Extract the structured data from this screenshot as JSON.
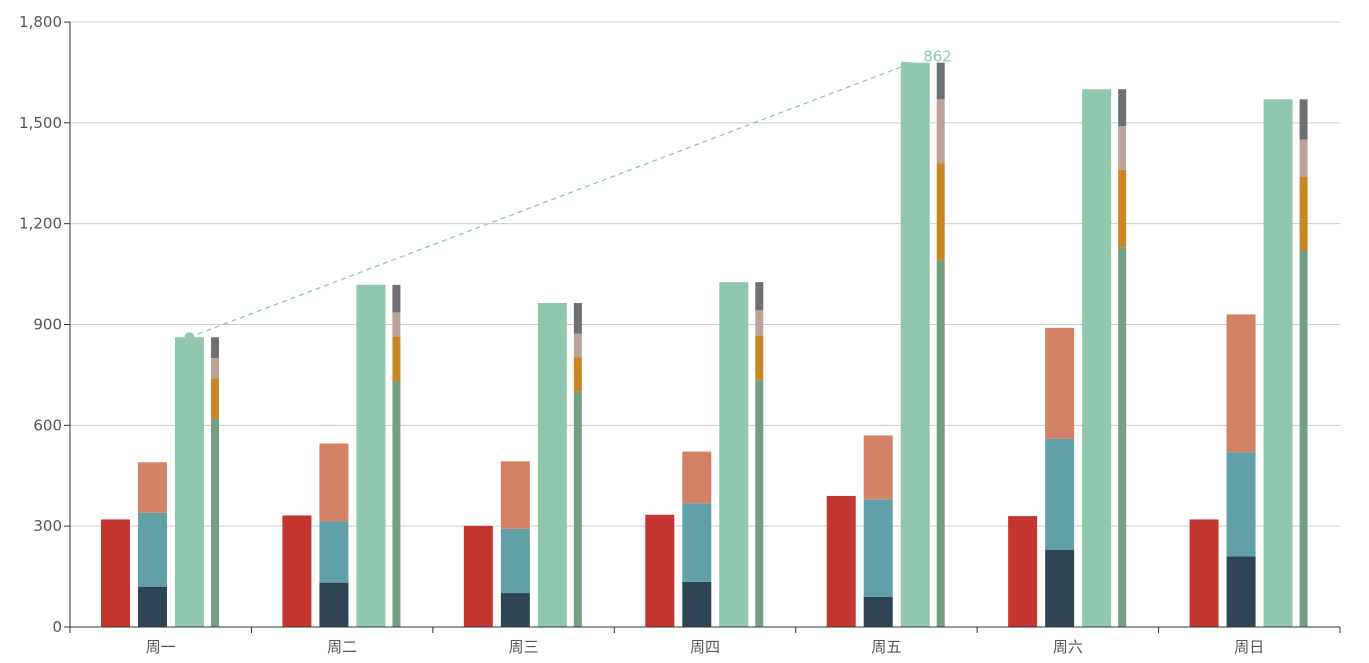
{
  "chart_data": {
    "type": "bar",
    "categories": [
      "周一",
      "周二",
      "周三",
      "周四",
      "周五",
      "周六",
      "周日"
    ],
    "ylim": [
      0,
      1800
    ],
    "yticks": [
      0,
      300,
      600,
      900,
      1200,
      1500,
      1800
    ],
    "ytick_labels": [
      "0",
      "300",
      "600",
      "900",
      "1,200",
      "1,500",
      "1,800"
    ],
    "grid": true,
    "legend": "none",
    "bar_groups": [
      {
        "segments": [
          {
            "color": "#c23531",
            "values": [
              320,
              332,
              301,
              334,
              390,
              330,
              320
            ]
          }
        ]
      },
      {
        "segments": [
          {
            "color": "#2f4554",
            "values": [
              120,
              132,
              101,
              134,
              90,
              230,
              210
            ]
          },
          {
            "color": "#61a0a8",
            "values": [
              220,
              182,
              191,
              234,
              290,
              330,
              310
            ]
          },
          {
            "color": "#d48265",
            "values": [
              150,
              232,
              201,
              154,
              190,
              330,
              410
            ]
          }
        ]
      },
      {
        "segments": [
          {
            "color": "#91c7ae",
            "values": [
              862,
              1018,
              964,
              1026,
              1679,
              1600,
              1570
            ]
          }
        ]
      },
      {
        "narrow": true,
        "segments": [
          {
            "color": "#749f83",
            "values": [
              620,
              732,
              701,
              734,
              1090,
              1130,
              1120
            ]
          },
          {
            "color": "#ca8622",
            "values": [
              120,
              132,
              101,
              134,
              290,
              230,
              220
            ]
          },
          {
            "color": "#bda29a",
            "values": [
              60,
              72,
              71,
              74,
              190,
              130,
              110
            ]
          },
          {
            "color": "#6e7074",
            "values": [
              62,
              82,
              91,
              84,
              109,
              110,
              120
            ]
          }
        ]
      }
    ],
    "annotation": {
      "from_category": "周一",
      "from_value": 862,
      "to_category": "周五",
      "to_value": 1679,
      "label": "862",
      "color": "#91c7ae"
    }
  }
}
